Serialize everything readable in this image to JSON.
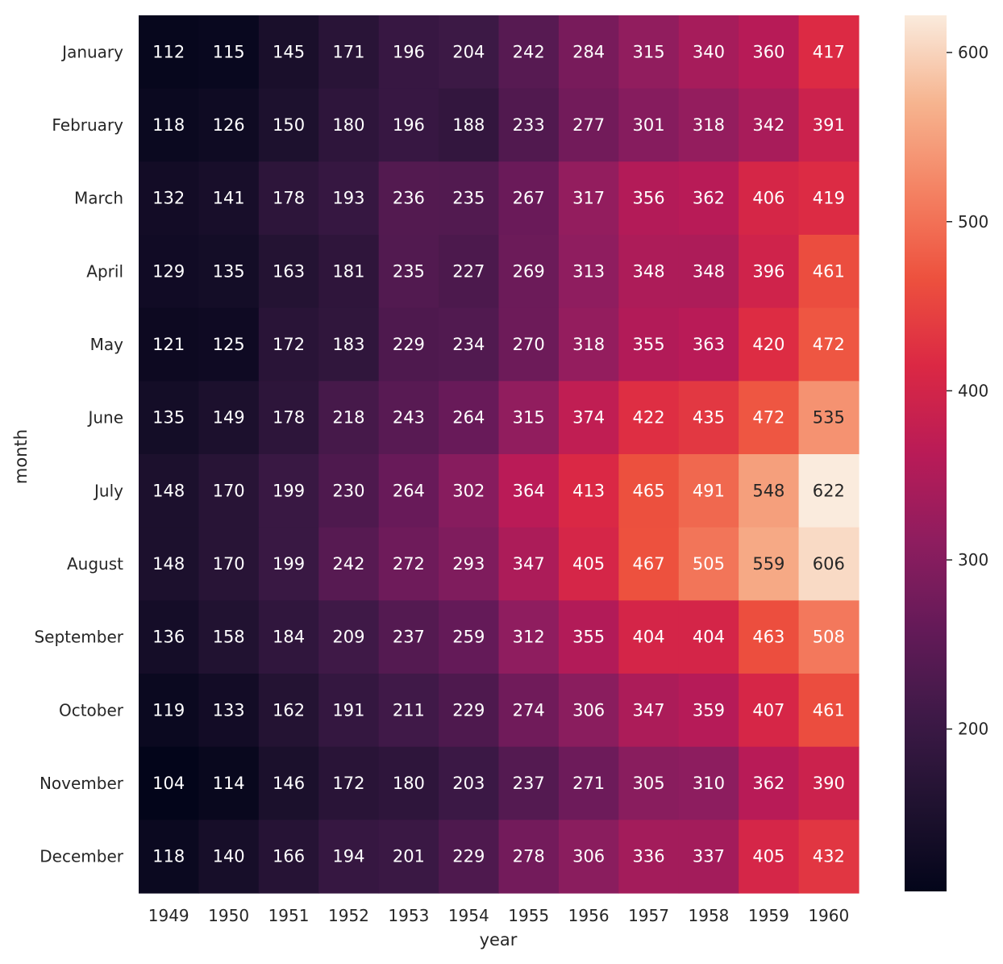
{
  "chart_data": {
    "type": "heatmap",
    "title": "",
    "xlabel": "year",
    "ylabel": "month",
    "x": [
      "1949",
      "1950",
      "1951",
      "1952",
      "1953",
      "1954",
      "1955",
      "1956",
      "1957",
      "1958",
      "1959",
      "1960"
    ],
    "y": [
      "January",
      "February",
      "March",
      "April",
      "May",
      "June",
      "July",
      "August",
      "September",
      "October",
      "November",
      "December"
    ],
    "values": [
      [
        112,
        115,
        145,
        171,
        196,
        204,
        242,
        284,
        315,
        340,
        360,
        417
      ],
      [
        118,
        126,
        150,
        180,
        196,
        188,
        233,
        277,
        301,
        318,
        342,
        391
      ],
      [
        132,
        141,
        178,
        193,
        236,
        235,
        267,
        317,
        356,
        362,
        406,
        419
      ],
      [
        129,
        135,
        163,
        181,
        235,
        227,
        269,
        313,
        348,
        348,
        396,
        461
      ],
      [
        121,
        125,
        172,
        183,
        229,
        234,
        270,
        318,
        355,
        363,
        420,
        472
      ],
      [
        135,
        149,
        178,
        218,
        243,
        264,
        315,
        374,
        422,
        435,
        472,
        535
      ],
      [
        148,
        170,
        199,
        230,
        264,
        302,
        364,
        413,
        465,
        491,
        548,
        622
      ],
      [
        148,
        170,
        199,
        242,
        272,
        293,
        347,
        405,
        467,
        505,
        559,
        606
      ],
      [
        136,
        158,
        184,
        209,
        237,
        259,
        312,
        355,
        404,
        404,
        463,
        508
      ],
      [
        119,
        133,
        162,
        191,
        211,
        229,
        274,
        306,
        347,
        359,
        407,
        461
      ],
      [
        104,
        114,
        146,
        172,
        180,
        203,
        237,
        271,
        305,
        310,
        362,
        390
      ],
      [
        118,
        140,
        166,
        194,
        201,
        229,
        278,
        306,
        336,
        337,
        405,
        432
      ]
    ],
    "colorbar": {
      "range": [
        104,
        622
      ],
      "ticks": [
        200,
        300,
        400,
        500,
        600
      ],
      "colormap": "rocket"
    },
    "annotations": true,
    "grid": false
  }
}
